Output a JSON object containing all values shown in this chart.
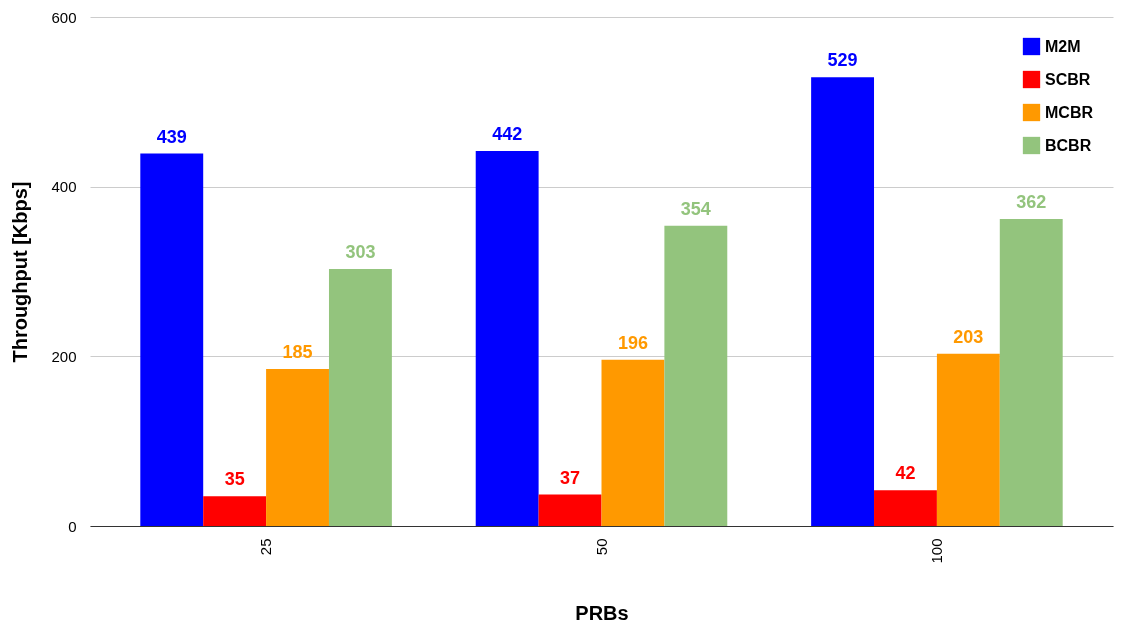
{
  "chart_data": {
    "type": "bar",
    "xlabel": "PRBs",
    "ylabel": "Throughput [Kbps]",
    "categories": [
      "25",
      "50",
      "100"
    ],
    "series": [
      {
        "name": "M2M",
        "color": "#0000ff",
        "values": [
          439,
          442,
          529
        ]
      },
      {
        "name": "SCBR",
        "color": "#ff0000",
        "values": [
          35,
          37,
          42
        ]
      },
      {
        "name": "MCBR",
        "color": "#ff9900",
        "values": [
          185,
          196,
          203
        ]
      },
      {
        "name": "BCBR",
        "color": "#93c47d",
        "values": [
          303,
          354,
          362
        ]
      }
    ],
    "ylim": [
      0,
      600
    ],
    "yticks": [
      0,
      200,
      400,
      600
    ],
    "grid": "y",
    "legend": "top right",
    "data_labels": true
  }
}
